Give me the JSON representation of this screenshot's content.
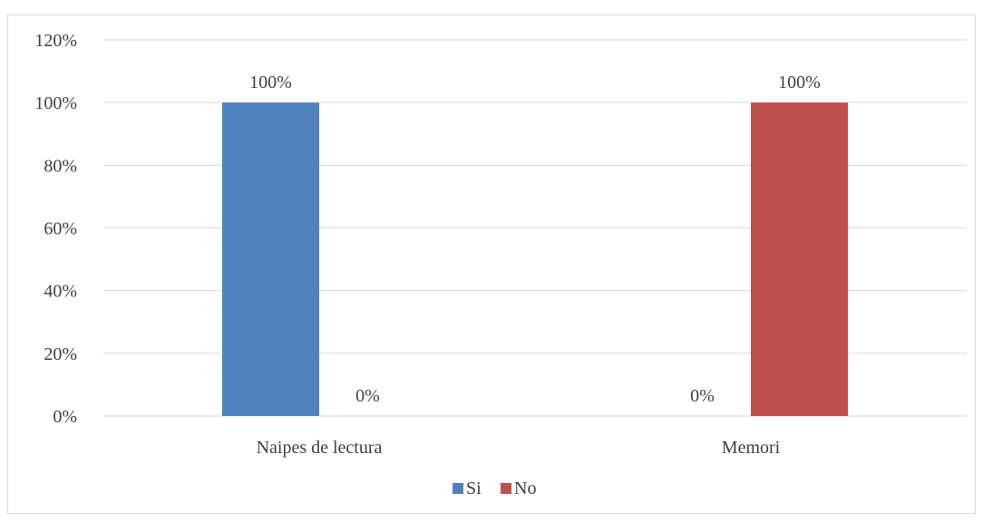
{
  "chart_data": {
    "type": "bar",
    "title": "",
    "xlabel": "",
    "ylabel": "",
    "categories": [
      "Naipes de lectura",
      "Memori"
    ],
    "series": [
      {
        "name": "Si",
        "values": [
          100,
          0
        ],
        "color": "#4f81bd"
      },
      {
        "name": "No",
        "values": [
          0,
          100
        ],
        "color": "#c0504d"
      }
    ],
    "ylim": [
      0,
      120
    ],
    "yticks": [
      0,
      20,
      40,
      60,
      80,
      100,
      120
    ],
    "y_tick_labels": [
      "0%",
      "20%",
      "40%",
      "60%",
      "80%",
      "100%",
      "120%"
    ],
    "data_labels": [
      [
        "100%",
        "0%"
      ],
      [
        "0%",
        "100%"
      ]
    ],
    "grid": true,
    "legend": "bottom",
    "gridline_color": "#d9d9d9"
  }
}
